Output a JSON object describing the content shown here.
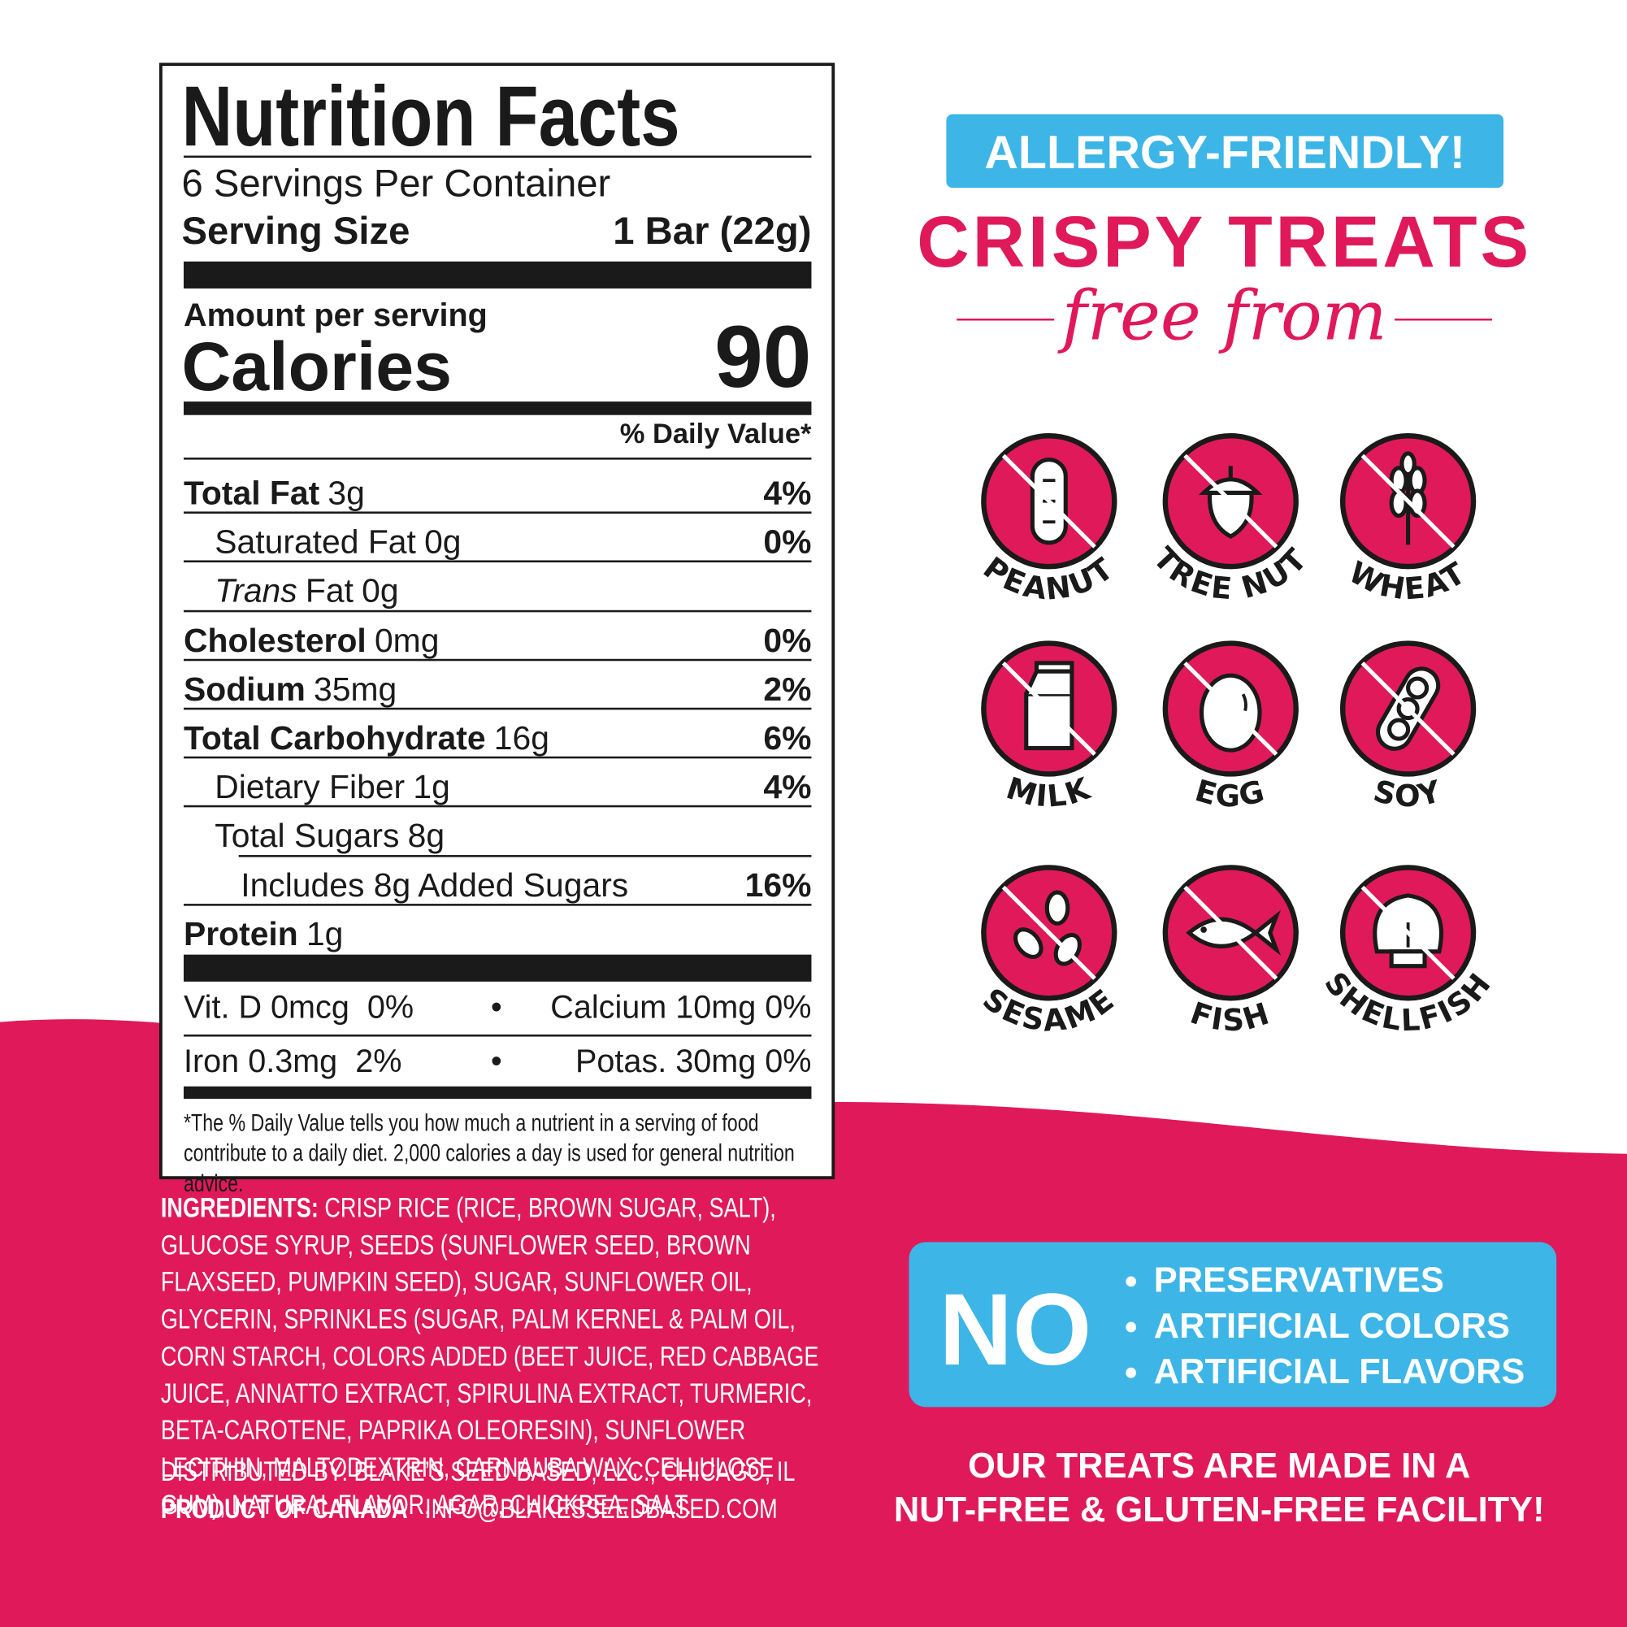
{
  "nutrition_facts": {
    "title": "Nutrition Facts",
    "servings_per_container": "6 Servings Per Container",
    "serving_size": {
      "label": "Serving Size",
      "value": "1 Bar (22g)"
    },
    "amount_per_serving": "Amount per serving",
    "calories": {
      "label": "Calories",
      "value": "90"
    },
    "daily_value_header": "% Daily Value*",
    "rows": [
      {
        "name": "Total Fat",
        "amount": "3g",
        "daily_value": "4%",
        "level": 0
      },
      {
        "name": "Saturated Fat",
        "amount": "0g",
        "daily_value": "0%",
        "level": 1
      },
      {
        "prefix": "Trans",
        "name": "Fat",
        "amount": "0g",
        "level": 1
      },
      {
        "name": "Cholesterol",
        "amount": "0mg",
        "daily_value": "0%",
        "level": 0
      },
      {
        "name": "Sodium",
        "amount": "35mg",
        "daily_value": "2%",
        "level": 0
      },
      {
        "name": "Total Carbohydrate",
        "amount": "16g",
        "daily_value": "6%",
        "level": 0
      },
      {
        "name": "Dietary Fiber",
        "amount": "1g",
        "daily_value": "4%",
        "level": 1
      },
      {
        "name": "Total Sugars",
        "amount": "8g",
        "level": 1
      },
      {
        "name": "Includes 8g Added Sugars",
        "daily_value": "16%",
        "level": 2
      },
      {
        "name": "Protein",
        "amount": "1g",
        "level": 0
      }
    ],
    "vitamins": [
      {
        "left": "Vit. D 0mcg  0%",
        "right": "Calcium 10mg 0%"
      },
      {
        "left": "Iron 0.3mg  2%",
        "right": "Potas. 30mg 0%"
      }
    ],
    "separator": "•",
    "footnote": "*The % Daily Value tells you how much a nutrient in a serving of food contribute to a daily diet. 2,000 calories a day is used for general nutrition advice."
  },
  "ingredients": {
    "label": "INGREDIENTS:",
    "text": "CRISP RICE (RICE, BROWN SUGAR, SALT), GLUCOSE SYRUP, SEEDS (SUNFLOWER SEED, BROWN FLAXSEED, PUMPKIN SEED), SUGAR, SUNFLOWER OIL, GLYCERIN, SPRINKLES (SUGAR, PALM KERNEL & PALM OIL, CORN STARCH, COLORS ADDED (BEET JUICE, RED CABBAGE JUICE, ANNATTO EXTRACT, SPIRULINA EXTRACT, TURMERIC, BETA-CAROTENE, PAPRIKA OLEORESIN), SUNFLOWER LECITHIN, MALTODEXTRIN, CARNAUBA WAX, CELLULOSE GUM), NATURAL FLAVOR, AGAR, CHICKPEA, SALT."
  },
  "distributed_by": "DISTRIBUTED BY: BLAKE’S SEED BASED, LLC., CHICAGO, IL",
  "origin": "PRODUCT OF CANADA",
  "email": "INFO@BLAKESSEEDBASED.COM",
  "allergy_panel": {
    "badge": "ALLERGY-FRIENDLY!",
    "headline": "CRISPY TREATS",
    "subheadline": "free from",
    "allergens": [
      "PEANUT",
      "TREE NUT",
      "WHEAT",
      "MILK",
      "EGG",
      "SOY",
      "SESAME",
      "FISH",
      "SHELLFISH"
    ]
  },
  "no_panel": {
    "label": "NO",
    "items": [
      "PRESERVATIVES",
      "ARTIFICIAL COLORS",
      "ARTIFICIAL FLAVORS"
    ]
  },
  "facility_note": [
    "OUR TREATS ARE MADE IN A",
    "NUT-FREE & GLUTEN-FREE FACILITY!"
  ]
}
